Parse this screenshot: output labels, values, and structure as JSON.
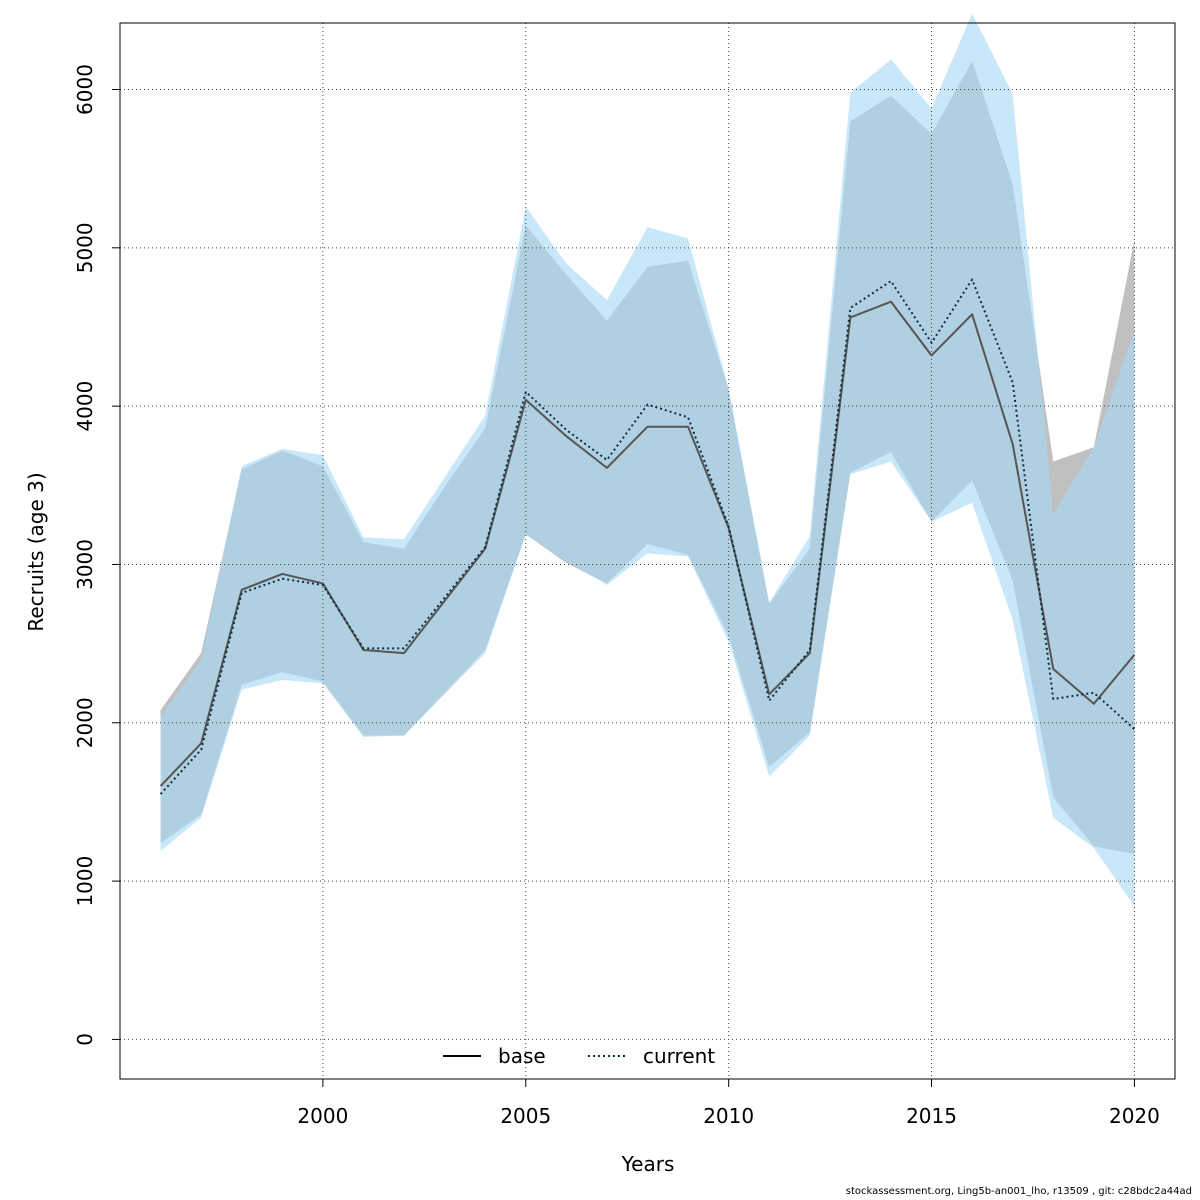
{
  "chart_data": {
    "type": "line",
    "title": "",
    "xlabel": "Years",
    "ylabel": "Recruits (age 3)",
    "xlim": [
      1995,
      2021
    ],
    "ylim": [
      -250,
      6420
    ],
    "x": [
      1996,
      1997,
      1998,
      1999,
      2000,
      2001,
      2002,
      2003,
      2004,
      2005,
      2006,
      2007,
      2008,
      2009,
      2010,
      2011,
      2012,
      2013,
      2014,
      2015,
      2016,
      2017,
      2018,
      2019,
      2020
    ],
    "x_ticks": [
      2000,
      2005,
      2010,
      2015,
      2020
    ],
    "x_tick_labels": [
      "2000",
      "2005",
      "2010",
      "2015",
      "2020"
    ],
    "y_ticks": [
      0,
      1000,
      2000,
      3000,
      4000,
      5000,
      6000
    ],
    "y_tick_labels": [
      "0",
      "1000",
      "2000",
      "3000",
      "4000",
      "5000",
      "6000"
    ],
    "grid": true,
    "legend_position": "bottom-center",
    "series": [
      {
        "name": "base",
        "line_style": "solid",
        "line_color": "#555555",
        "band_color": "#bdbdbd",
        "values": [
          1600,
          1870,
          2840,
          2940,
          2880,
          2460,
          2440,
          2770,
          3100,
          4040,
          3810,
          3610,
          3870,
          3870,
          3230,
          2180,
          2440,
          4560,
          4660,
          4320,
          4580,
          3760,
          2340,
          2120,
          2430
        ],
        "lower": [
          1240,
          1420,
          2240,
          2320,
          2260,
          1920,
          1920,
          2190,
          2460,
          3190,
          3010,
          2880,
          3130,
          3060,
          2550,
          1720,
          1940,
          3580,
          3710,
          3270,
          3530,
          2900,
          1530,
          1220,
          1170
        ],
        "upper": [
          2080,
          2440,
          3600,
          3720,
          3620,
          3140,
          3100,
          3490,
          3860,
          5140,
          4830,
          4540,
          4880,
          4920,
          4100,
          2750,
          3100,
          5800,
          5960,
          5720,
          6180,
          5400,
          3650,
          3740,
          5050
        ]
      },
      {
        "name": "current",
        "line_style": "dotted",
        "line_color": "#0b2f47",
        "band_color": "#a6d8f3",
        "values": [
          1550,
          1830,
          2820,
          2910,
          2870,
          2470,
          2470,
          2790,
          3110,
          4090,
          3850,
          3660,
          4010,
          3930,
          3240,
          2140,
          2460,
          4620,
          4790,
          4400,
          4800,
          4150,
          2150,
          2190,
          1960
        ],
        "lower": [
          1190,
          1400,
          2210,
          2270,
          2250,
          1910,
          1920,
          2180,
          2440,
          3190,
          3020,
          2870,
          3070,
          3050,
          2510,
          1660,
          1920,
          3570,
          3650,
          3270,
          3390,
          2650,
          1400,
          1210,
          840
        ],
        "upper": [
          2040,
          2400,
          3620,
          3730,
          3690,
          3170,
          3160,
          3550,
          3940,
          5260,
          4900,
          4670,
          5130,
          5060,
          4110,
          2760,
          3180,
          5980,
          6190,
          5880,
          6480,
          5970,
          3320,
          3740,
          4480
        ]
      }
    ]
  },
  "footer_text": "stockassessment.org, Ling5b-an001_lho, r13509 , git: c28bdc2a44ad"
}
